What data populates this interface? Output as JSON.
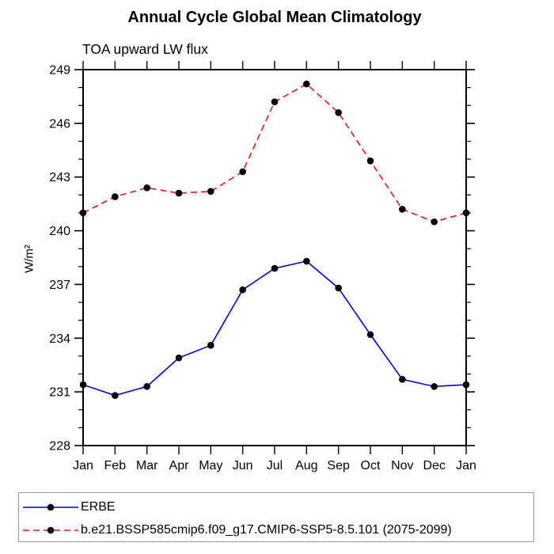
{
  "title": "Annual Cycle Global Mean Climatology",
  "subtitle": "TOA upward LW flux",
  "ylabel": "W/m²",
  "chart_data": {
    "type": "line",
    "x_categories": [
      "Jan",
      "Feb",
      "Mar",
      "Apr",
      "May",
      "Jun",
      "Jul",
      "Aug",
      "Sep",
      "Oct",
      "Nov",
      "Dec",
      "Jan"
    ],
    "xlabel": "",
    "ylabel": "W/m²",
    "ylim": [
      228,
      249
    ],
    "y_major_ticks": [
      228,
      231,
      234,
      237,
      240,
      243,
      246,
      249
    ],
    "y_minor_step": 1,
    "grid": false,
    "legend_position": "bottom",
    "series": [
      {
        "name": "ERBE",
        "color": "#0000e0",
        "line_style": "solid",
        "marker": "black-dot",
        "values": [
          231.4,
          230.8,
          231.3,
          232.9,
          233.6,
          236.7,
          237.9,
          238.3,
          236.8,
          234.2,
          231.7,
          231.3,
          231.4
        ]
      },
      {
        "name": "b.e21.BSSP585cmip6.f09_g17.CMIP6-SSP5-8.5.101 (2075-2099)",
        "color": "#f01414",
        "line_style": "dashed",
        "marker": "black-dot",
        "values": [
          241.0,
          241.9,
          242.4,
          242.1,
          242.2,
          243.3,
          247.2,
          248.2,
          246.6,
          243.9,
          241.2,
          240.5,
          241.0
        ]
      }
    ]
  }
}
